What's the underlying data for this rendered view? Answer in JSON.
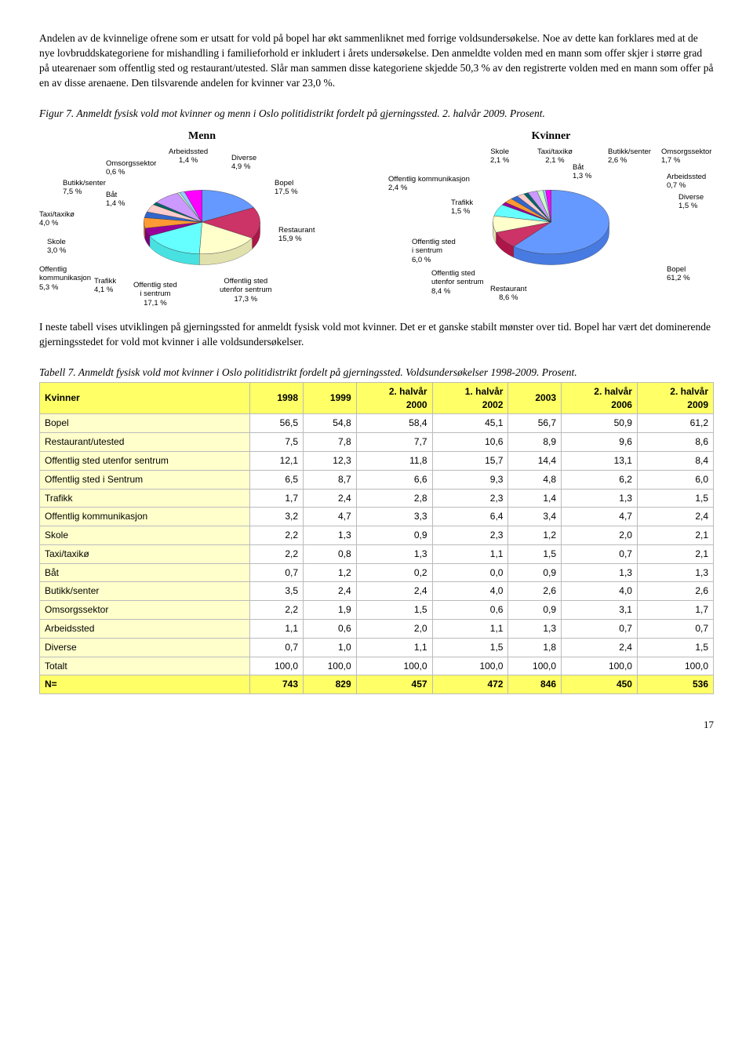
{
  "intro_paragraph": "Andelen av de kvinnelige ofrene som er utsatt for vold på bopel har økt sammenliknet med forrige voldsundersøkelse. Noe av dette kan forklares med at de nye lovbruddskategoriene for mishandling i familieforhold er inkludert i årets undersøkelse. Den anmeldte volden med en mann som offer skjer i større grad på utearenaer som offentlig sted og restaurant/utested. Slår man sammen disse kategoriene skjedde 50,3 % av den registrerte volden med en mann som offer på en av disse arenaene. Den tilsvarende andelen for kvinner var 23,0 %.",
  "figure_title": "Figur 7. Anmeldt fysisk vold mot kvinner og menn i Oslo politidistrikt fordelt på gjerningssted. 2. halvår 2009. Prosent.",
  "menn_chart": {
    "title": "Menn",
    "slices": [
      {
        "label": "Bopel",
        "value": 17.5,
        "color": "#6699ff"
      },
      {
        "label": "Restaurant",
        "value": 15.9,
        "color": "#cc3366"
      },
      {
        "label": "Offentlig sted utenfor sentrum",
        "value": 17.3,
        "color": "#ffffcc"
      },
      {
        "label": "Offentlig sted i sentrum",
        "value": 17.1,
        "color": "#66ffff"
      },
      {
        "label": "Trafikk",
        "value": 4.1,
        "color": "#990099"
      },
      {
        "label": "Offentlig kommunikasjon",
        "value": 5.3,
        "color": "#ff9933"
      },
      {
        "label": "Skole",
        "value": 3.0,
        "color": "#3366cc"
      },
      {
        "label": "Taxi/taxikø",
        "value": 4.0,
        "color": "#ffcccc"
      },
      {
        "label": "Båt",
        "value": 1.4,
        "color": "#006666"
      },
      {
        "label": "Butikk/senter",
        "value": 7.5,
        "color": "#cc99ff"
      },
      {
        "label": "Omsorgssektor",
        "value": 0.6,
        "color": "#ccffcc"
      },
      {
        "label": "Arbeidssted",
        "value": 1.4,
        "color": "#99ccff"
      },
      {
        "label": "Diverse",
        "value": 4.9,
        "color": "#ff00ff"
      }
    ],
    "labels": {
      "arbeidssted": "Arbeidssted\n1,4 %",
      "diverse": "Diverse\n4,9 %",
      "bopel": "Bopel\n17,5 %",
      "restaurant": "Restaurant\n15,9 %",
      "off_utenfor": "Offentlig sted\nutenfor sentrum\n17,3 %",
      "off_sentrum": "Offentlig sted\ni sentrum\n17,1 %",
      "trafikk": "Trafikk\n4,1 %",
      "off_komm": "Offentlig\nkommunikasjon\n5,3 %",
      "skole": "Skole\n3,0 %",
      "taxi": "Taxi/taxikø\n4,0 %",
      "bat": "Båt\n1,4 %",
      "butikk": "Butikk/senter\n7,5 %",
      "omsorg": "Omsorgssektor\n0,6 %"
    }
  },
  "kvinner_chart": {
    "title": "Kvinner",
    "slices": [
      {
        "label": "Bopel",
        "value": 61.2,
        "color": "#6699ff"
      },
      {
        "label": "Restaurant",
        "value": 8.6,
        "color": "#cc3366"
      },
      {
        "label": "Offentlig sted utenfor sentrum",
        "value": 8.4,
        "color": "#ffffcc"
      },
      {
        "label": "Offentlig sted i sentrum",
        "value": 6.0,
        "color": "#66ffff"
      },
      {
        "label": "Trafikk",
        "value": 1.5,
        "color": "#990099"
      },
      {
        "label": "Offentlig kommunikasjon",
        "value": 2.4,
        "color": "#ff9933"
      },
      {
        "label": "Skole",
        "value": 2.1,
        "color": "#3366cc"
      },
      {
        "label": "Taxi/taxikø",
        "value": 2.1,
        "color": "#ffcccc"
      },
      {
        "label": "Båt",
        "value": 1.3,
        "color": "#006666"
      },
      {
        "label": "Butikk/senter",
        "value": 2.6,
        "color": "#cc99ff"
      },
      {
        "label": "Omsorgssektor",
        "value": 1.7,
        "color": "#ccffcc"
      },
      {
        "label": "Arbeidssted",
        "value": 0.7,
        "color": "#99ccff"
      },
      {
        "label": "Diverse",
        "value": 1.5,
        "color": "#ff00ff"
      }
    ],
    "labels": {
      "skole": "Skole\n2,1 %",
      "taxi": "Taxi/taxikø\n2,1 %",
      "bat": "Båt\n1,3 %",
      "butikk": "Butikk/senter\n2,6 %",
      "omsorg": "Omsorgssektor\n1,7 %",
      "arbeidssted": "Arbeidssted\n0,7 %",
      "diverse": "Diverse\n1,5 %",
      "bopel": "Bopel\n61,2 %",
      "restaurant": "Restaurant\n8,6 %",
      "off_utenfor": "Offentlig sted\nutenfor sentrum\n8,4 %",
      "off_sentrum": "Offentlig sted\ni sentrum\n6,0 %",
      "off_komm": "Offentlig kommunikasjon\n2,4 %",
      "trafikk": "Trafikk\n1,5 %"
    }
  },
  "mid_paragraph": "I neste tabell vises utviklingen på gjerningssted for anmeldt fysisk vold mot kvinner. Det er et ganske stabilt mønster over tid. Bopel har vært det dominerende gjerningsstedet for vold mot kvinner i alle voldsundersøkelser.",
  "table_title": "Tabell 7. Anmeldt fysisk vold mot kvinner i Oslo politidistrikt fordelt på gjerningssted. Voldsundersøkelser 1998-2009. Prosent.",
  "table": {
    "columns": [
      "Kvinner",
      "1998",
      "1999",
      "2. halvår 2000",
      "1. halvår 2002",
      "2003",
      "2. halvår 2006",
      "2. halvår 2009"
    ],
    "rows": [
      [
        "Bopel",
        "56,5",
        "54,8",
        "58,4",
        "45,1",
        "56,7",
        "50,9",
        "61,2"
      ],
      [
        "Restaurant/utested",
        "7,5",
        "7,8",
        "7,7",
        "10,6",
        "8,9",
        "9,6",
        "8,6"
      ],
      [
        "Offentlig sted utenfor sentrum",
        "12,1",
        "12,3",
        "11,8",
        "15,7",
        "14,4",
        "13,1",
        "8,4"
      ],
      [
        "Offentlig sted i Sentrum",
        "6,5",
        "8,7",
        "6,6",
        "9,3",
        "4,8",
        "6,2",
        "6,0"
      ],
      [
        "Trafikk",
        "1,7",
        "2,4",
        "2,8",
        "2,3",
        "1,4",
        "1,3",
        "1,5"
      ],
      [
        "Offentlig kommunikasjon",
        "3,2",
        "4,7",
        "3,3",
        "6,4",
        "3,4",
        "4,7",
        "2,4"
      ],
      [
        "Skole",
        "2,2",
        "1,3",
        "0,9",
        "2,3",
        "1,2",
        "2,0",
        "2,1"
      ],
      [
        "Taxi/taxikø",
        "2,2",
        "0,8",
        "1,3",
        "1,1",
        "1,5",
        "0,7",
        "2,1"
      ],
      [
        "Båt",
        "0,7",
        "1,2",
        "0,2",
        "0,0",
        "0,9",
        "1,3",
        "1,3"
      ],
      [
        "Butikk/senter",
        "3,5",
        "2,4",
        "2,4",
        "4,0",
        "2,6",
        "4,0",
        "2,6"
      ],
      [
        "Omsorgssektor",
        "2,2",
        "1,9",
        "1,5",
        "0,6",
        "0,9",
        "3,1",
        "1,7"
      ],
      [
        "Arbeidssted",
        "1,1",
        "0,6",
        "2,0",
        "1,1",
        "1,3",
        "0,7",
        "0,7"
      ],
      [
        "Diverse",
        "0,7",
        "1,0",
        "1,1",
        "1,5",
        "1,8",
        "2,4",
        "1,5"
      ],
      [
        "Totalt",
        "100,0",
        "100,0",
        "100,0",
        "100,0",
        "100,0",
        "100,0",
        "100,0"
      ]
    ],
    "highlight_row": [
      "N=",
      "743",
      "829",
      "457",
      "472",
      "846",
      "450",
      "536"
    ]
  },
  "page_number": "17"
}
